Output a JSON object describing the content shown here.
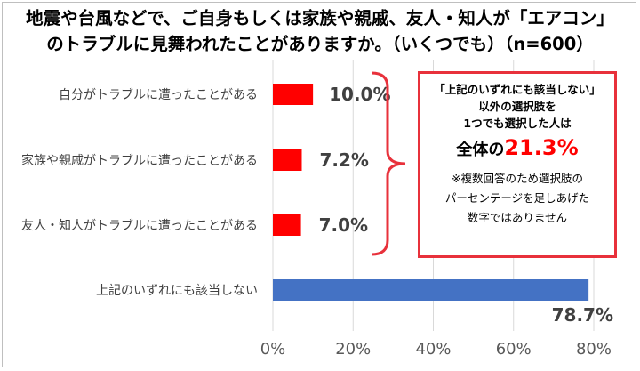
{
  "title_line1": "地震や台風などで、ご自身もしくは家族や親戚、友人・知人が「エアコン」",
  "title_line2": "のトラブルに見舞われたことがありますか。（いくつでも）（n=600）",
  "chart_data": {
    "type": "bar",
    "orientation": "horizontal",
    "title": "地震や台風などで、ご自身もしくは家族や親戚、友人・知人が「エアコン」のトラブルに見舞われたことがありますか。（いくつでも）（n=600）",
    "categories": [
      "自分がトラブルに遭ったことがある",
      "家族や親戚がトラブルに遭ったことがある",
      "友人・知人がトラブルに遭ったことがある",
      "上記のいずれにも該当しない"
    ],
    "values": [
      10.0,
      7.2,
      7.0,
      78.7
    ],
    "value_labels": [
      "10.0%",
      "7.2%",
      "7.0%",
      "78.7%"
    ],
    "bar_colors": [
      "#ff0000",
      "#ff0000",
      "#ff0000",
      "#4472c4"
    ],
    "xlim": [
      0,
      80
    ],
    "x_ticks": [
      0,
      20,
      40,
      60,
      80
    ],
    "x_tick_labels": [
      "0%",
      "20%",
      "40%",
      "60%",
      "80%"
    ],
    "grid": true,
    "xlabel": "",
    "ylabel": ""
  },
  "callout": {
    "line1": "「上記のいずれにも該当しない」",
    "line2": "以外の選択肢を",
    "line3": "1つでも選択した人は",
    "total_label": "全体の",
    "total_value": "21.3%",
    "note_line1": "※複数回答のため選択肢の",
    "note_line2": "パーセンテージを足しあげた",
    "note_line3": "数字ではありません"
  },
  "colors": {
    "accent_red": "#ff0000",
    "blue_bar": "#4472c4",
    "bracket": "#e8313b"
  }
}
